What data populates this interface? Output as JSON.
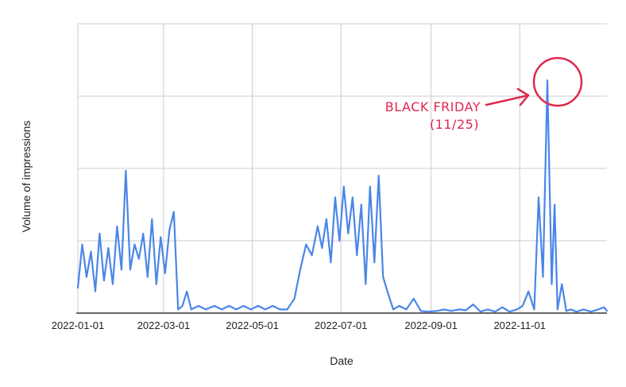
{
  "chart_data": {
    "type": "line",
    "xlabel": "Date",
    "ylabel": "Volume of impressions",
    "x_ticks": [
      "2022-01-01",
      "2022-03-01",
      "2022-05-01",
      "2022-07-01",
      "2022-09-01",
      "2022-11-01"
    ],
    "x_range": [
      "2022-01-01",
      "2022-12-31"
    ],
    "ylim": [
      0,
      4
    ],
    "y_gridlines": [
      1,
      2,
      3,
      4
    ],
    "grid": true,
    "colors": {
      "line": "#4a86e8",
      "annotation": "#e0284f",
      "grid": "#cccccc"
    },
    "series": [
      {
        "x": [
          "2022-01-01",
          "2022-01-04",
          "2022-01-07",
          "2022-01-10",
          "2022-01-13",
          "2022-01-16",
          "2022-01-19",
          "2022-01-22",
          "2022-01-25",
          "2022-01-28",
          "2022-01-31",
          "2022-02-03",
          "2022-02-06",
          "2022-02-09",
          "2022-02-12",
          "2022-02-15",
          "2022-02-18",
          "2022-02-21",
          "2022-02-24",
          "2022-02-27",
          "2022-03-02",
          "2022-03-05",
          "2022-03-08",
          "2022-03-11",
          "2022-03-14",
          "2022-03-17",
          "2022-03-20",
          "2022-03-25",
          "2022-03-30",
          "2022-04-05",
          "2022-04-10",
          "2022-04-15",
          "2022-04-20",
          "2022-04-25",
          "2022-04-30",
          "2022-05-05",
          "2022-05-10",
          "2022-05-15",
          "2022-05-20",
          "2022-05-25",
          "2022-05-30",
          "2022-06-03",
          "2022-06-07",
          "2022-06-11",
          "2022-06-15",
          "2022-06-18",
          "2022-06-21",
          "2022-06-24",
          "2022-06-27",
          "2022-06-30",
          "2022-07-03",
          "2022-07-06",
          "2022-07-09",
          "2022-07-12",
          "2022-07-15",
          "2022-07-18",
          "2022-07-21",
          "2022-07-24",
          "2022-07-27",
          "2022-07-30",
          "2022-08-02",
          "2022-08-06",
          "2022-08-10",
          "2022-08-15",
          "2022-08-20",
          "2022-08-25",
          "2022-08-30",
          "2022-09-05",
          "2022-09-10",
          "2022-09-15",
          "2022-09-20",
          "2022-09-25",
          "2022-09-30",
          "2022-10-05",
          "2022-10-10",
          "2022-10-15",
          "2022-10-20",
          "2022-10-25",
          "2022-10-30",
          "2022-11-03",
          "2022-11-07",
          "2022-11-11",
          "2022-11-14",
          "2022-11-17",
          "2022-11-20",
          "2022-11-23",
          "2022-11-25",
          "2022-11-27",
          "2022-11-30",
          "2022-12-03",
          "2022-12-06",
          "2022-12-10",
          "2022-12-15",
          "2022-12-20",
          "2022-12-25",
          "2022-12-29",
          "2022-12-31"
        ],
        "y": [
          0.35,
          0.95,
          0.5,
          0.85,
          0.3,
          1.1,
          0.45,
          0.9,
          0.4,
          1.2,
          0.6,
          1.97,
          0.6,
          0.95,
          0.75,
          1.1,
          0.5,
          1.3,
          0.4,
          1.05,
          0.55,
          1.15,
          1.4,
          0.05,
          0.1,
          0.3,
          0.05,
          0.1,
          0.05,
          0.1,
          0.05,
          0.1,
          0.05,
          0.1,
          0.05,
          0.1,
          0.05,
          0.1,
          0.05,
          0.05,
          0.2,
          0.6,
          0.95,
          0.8,
          1.2,
          0.9,
          1.3,
          0.7,
          1.6,
          1.0,
          1.75,
          1.1,
          1.6,
          0.8,
          1.5,
          0.4,
          1.75,
          0.7,
          1.9,
          0.5,
          0.3,
          0.05,
          0.1,
          0.05,
          0.2,
          0.03,
          0.02,
          0.03,
          0.05,
          0.03,
          0.05,
          0.04,
          0.12,
          0.02,
          0.05,
          0.02,
          0.08,
          0.02,
          0.05,
          0.1,
          0.3,
          0.05,
          1.6,
          0.5,
          3.22,
          0.4,
          1.5,
          0.05,
          0.4,
          0.03,
          0.05,
          0.02,
          0.05,
          0.02,
          0.05,
          0.08,
          0.03
        ]
      }
    ],
    "annotations": [
      {
        "text_line1": "BLACK FRIDAY",
        "text_line2": "(11/25)",
        "target_date": "2022-11-25"
      }
    ]
  }
}
